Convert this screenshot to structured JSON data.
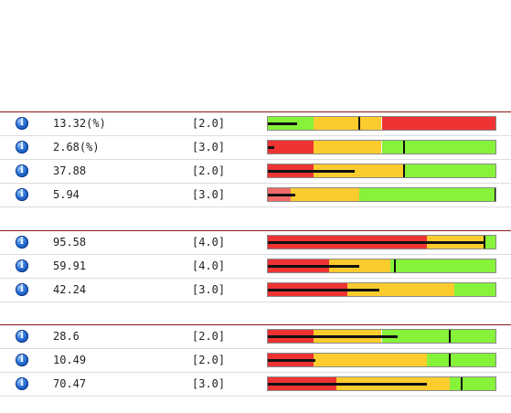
{
  "colors": {
    "red": "#ef3333",
    "yellow": "#fccc2e",
    "green": "#86f23a",
    "pink": "#f06a6a",
    "divider": "#8b1a1a",
    "info": "#2a6fd6"
  },
  "icon": "info-icon",
  "groups": [
    {
      "rows": [
        {
          "value": "13.32(%)",
          "weight": "[2.0]",
          "bands": [
            [
              "green",
              0.2
            ],
            [
              "yellow",
              0.3
            ],
            [
              "red",
              0.5
            ]
          ],
          "measure": 0.13,
          "target": 0.4
        },
        {
          "value": "2.68(%)",
          "weight": "[3.0]",
          "bands": [
            [
              "red",
              0.2
            ],
            [
              "yellow",
              0.3
            ],
            [
              "green",
              0.5
            ]
          ],
          "measure": 0.027,
          "target": 0.6
        },
        {
          "value": "37.88",
          "weight": "[2.0]",
          "bands": [
            [
              "red",
              0.2
            ],
            [
              "yellow",
              0.4
            ],
            [
              "green",
              0.4
            ]
          ],
          "measure": 0.38,
          "target": 0.6
        },
        {
          "value": "5.94",
          "weight": "[3.0]",
          "bands": [
            [
              "pink",
              0.1
            ],
            [
              "yellow",
              0.3
            ],
            [
              "green",
              0.6
            ]
          ],
          "measure": 0.12,
          "target": 1.0
        }
      ]
    },
    {
      "rows": [
        {
          "value": "95.58",
          "weight": "[4.0]",
          "bands": [
            [
              "red",
              0.7
            ],
            [
              "yellow",
              0.25
            ],
            [
              "green",
              0.05
            ]
          ],
          "measure": 0.956,
          "target": 0.95
        },
        {
          "value": "59.91",
          "weight": "[4.0]",
          "bands": [
            [
              "red",
              0.27
            ],
            [
              "yellow",
              0.27
            ],
            [
              "green",
              0.46
            ]
          ],
          "measure": 0.4,
          "target": 0.56
        },
        {
          "value": "42.24",
          "weight": "[3.0]",
          "bands": [
            [
              "red",
              0.35
            ],
            [
              "yellow",
              0.47
            ],
            [
              "green",
              0.18
            ]
          ],
          "measure": 0.49,
          "target": null
        }
      ]
    },
    {
      "rows": [
        {
          "value": "28.6",
          "weight": "[2.0]",
          "bands": [
            [
              "red",
              0.2
            ],
            [
              "yellow",
              0.3
            ],
            [
              "green",
              0.5
            ]
          ],
          "measure": 0.57,
          "target": 0.8
        },
        {
          "value": "10.49",
          "weight": "[2.0]",
          "bands": [
            [
              "red",
              0.2
            ],
            [
              "yellow",
              0.5
            ],
            [
              "green",
              0.3
            ]
          ],
          "measure": 0.21,
          "target": 0.8
        },
        {
          "value": "70.47",
          "weight": "[3.0]",
          "bands": [
            [
              "red",
              0.3
            ],
            [
              "yellow",
              0.5
            ],
            [
              "green",
              0.2
            ]
          ],
          "measure": 0.7,
          "target": 0.85
        }
      ]
    }
  ]
}
